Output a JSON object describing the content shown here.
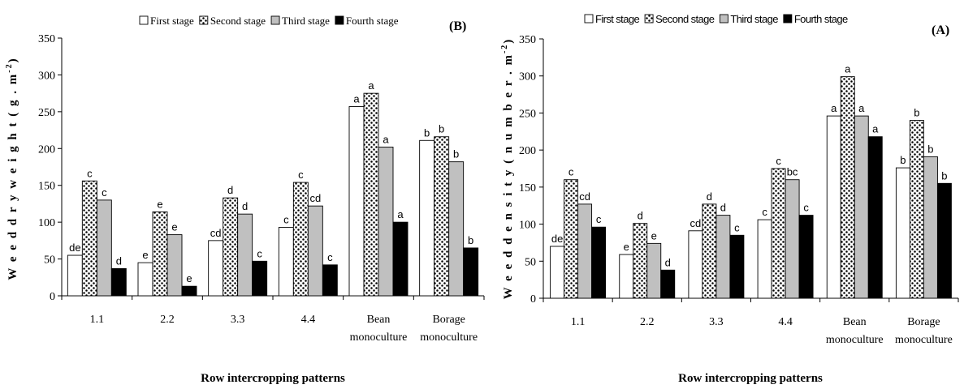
{
  "chart_data": [
    {
      "type": "bar",
      "panel_label": "(B)",
      "ylabel": "Weed dry weight (g.m-2)",
      "ylabel_text": "W e e d  d r y  w e i g h t   ( g . m",
      "ylabel_sup": "-2",
      "ylabel_close": ")",
      "xlabel": "Row intercropping patterns",
      "ylim": [
        0,
        350
      ],
      "yticks": [
        "0",
        "50",
        "100",
        "150",
        "200",
        "250",
        "300",
        "350"
      ],
      "categories": [
        "1.1",
        "2.2",
        "3.3",
        "4.4",
        "Bean monoculture",
        "Borage monoculture"
      ],
      "category_lines": [
        [
          "1.1"
        ],
        [
          "2.2"
        ],
        [
          "3.3"
        ],
        [
          "4.4"
        ],
        [
          "Bean",
          "monoculture"
        ],
        [
          "Borage",
          "monoculture"
        ]
      ],
      "legend_position": "top",
      "series": [
        {
          "name": "First stage",
          "pattern": "white",
          "values": [
            55,
            45,
            75,
            93,
            257,
            211
          ],
          "letters": [
            "de",
            "e",
            "cd",
            "c",
            "a",
            "b"
          ]
        },
        {
          "name": "Second stage",
          "pattern": "dots",
          "values": [
            156,
            114,
            133,
            154,
            275,
            216
          ],
          "letters": [
            "c",
            "e",
            "d",
            "c",
            "a",
            "b"
          ]
        },
        {
          "name": "Third stage",
          "pattern": "gray",
          "values": [
            130,
            83,
            111,
            122,
            202,
            182
          ],
          "letters": [
            "c",
            "e",
            "d",
            "cd",
            "a",
            "b"
          ]
        },
        {
          "name": "Fourth stage",
          "pattern": "black",
          "values": [
            37,
            13,
            47,
            42,
            100,
            65
          ],
          "letters": [
            "d",
            "e",
            "c",
            "c",
            "a",
            "b"
          ]
        }
      ]
    },
    {
      "type": "bar",
      "panel_label": "(A)",
      "ylabel": "Weed density (number.m-2)",
      "ylabel_text": "W e e d  d e n s i t y   ( n u m b e r . m",
      "ylabel_sup": "-2",
      "ylabel_close": ")",
      "xlabel": "Row intercropping patterns",
      "ylim": [
        0,
        350
      ],
      "yticks": [
        "0",
        "50",
        "100",
        "150",
        "200",
        "250",
        "300",
        "350"
      ],
      "categories": [
        "1.1",
        "2.2",
        "3.3",
        "4.4",
        "Bean monoculture",
        "Borage monoculture"
      ],
      "category_lines": [
        [
          "1.1"
        ],
        [
          "2.2"
        ],
        [
          "3.3"
        ],
        [
          "4.4"
        ],
        [
          "Bean",
          "monoculture"
        ],
        [
          "Borage",
          "monoculture"
        ]
      ],
      "legend_position": "top",
      "series": [
        {
          "name": "First stage",
          "pattern": "white",
          "values": [
            70,
            59,
            91,
            106,
            246,
            176
          ],
          "letters": [
            "de",
            "e",
            "cd",
            "c",
            "a",
            "b"
          ]
        },
        {
          "name": "Second stage",
          "pattern": "dots",
          "values": [
            160,
            101,
            127,
            175,
            299,
            240
          ],
          "letters": [
            "c",
            "d",
            "d",
            "c",
            "a",
            "b"
          ]
        },
        {
          "name": "Third stage",
          "pattern": "gray",
          "values": [
            127,
            74,
            112,
            160,
            246,
            191
          ],
          "letters": [
            "cd",
            "e",
            "d",
            "bc",
            "a",
            "b"
          ]
        },
        {
          "name": "Fourth stage",
          "pattern": "black",
          "values": [
            96,
            38,
            85,
            112,
            218,
            155
          ],
          "letters": [
            "c",
            "d",
            "c",
            "c",
            "a",
            "b"
          ]
        }
      ]
    }
  ],
  "colors": {
    "white": "#ffffff",
    "gray": "#c0c0c0",
    "black": "#000000",
    "dot_bg": "#ffffff",
    "dot": "#000000"
  }
}
